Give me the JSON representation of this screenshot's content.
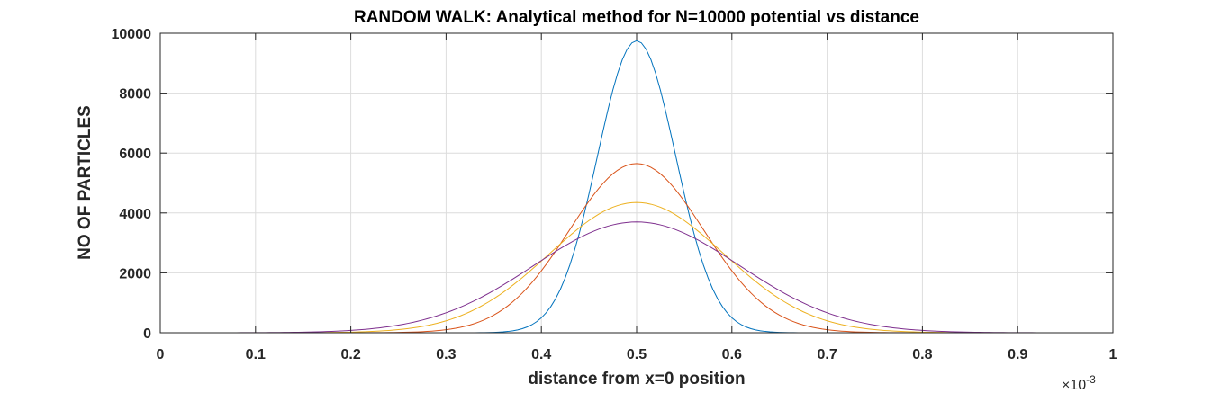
{
  "chart_data": {
    "type": "line",
    "title": "RANDOM WALK: Analytical method for N=10000 potential vs distance",
    "xlabel": "distance from x=0 position",
    "ylabel": "NO OF PARTICLES",
    "x_exponent_label": "×10",
    "x_exponent": "-3",
    "xlim": [
      0,
      1
    ],
    "ylim": [
      0,
      10000
    ],
    "x_ticks": [
      "0",
      "0.1",
      "0.2",
      "0.3",
      "0.4",
      "0.5",
      "0.6",
      "0.7",
      "0.8",
      "0.9",
      "1"
    ],
    "y_ticks": [
      "0",
      "2000",
      "4000",
      "6000",
      "8000",
      "10000"
    ],
    "grid": true,
    "x_unit_scale": "1e-3",
    "series": [
      {
        "color": "#0072BD",
        "peak_x": 0.5,
        "peak_y": 9750,
        "sigma": 0.041,
        "x": [
          0.3,
          0.35,
          0.4,
          0.45,
          0.5,
          0.55,
          0.6,
          0.65,
          0.7
        ],
        "y": [
          7,
          125,
          1000,
          4720,
          9750,
          4720,
          1000,
          125,
          7
        ]
      },
      {
        "color": "#D95319",
        "peak_x": 0.5,
        "peak_y": 5650,
        "sigma": 0.0705,
        "x": [
          0.2,
          0.3,
          0.4,
          0.45,
          0.5,
          0.55,
          0.6,
          0.7,
          0.8
        ],
        "y": [
          7,
          100,
          2050,
          4450,
          5650,
          4450,
          2050,
          100,
          7
        ]
      },
      {
        "color": "#EDB120",
        "peak_x": 0.5,
        "peak_y": 4350,
        "sigma": 0.0915,
        "x": [
          0.1,
          0.2,
          0.3,
          0.4,
          0.5,
          0.6,
          0.7,
          0.8,
          0.9
        ],
        "y": [
          3,
          200,
          400,
          2400,
          4350,
          2400,
          400,
          200,
          3
        ]
      },
      {
        "color": "#7E2F8E",
        "peak_x": 0.5,
        "peak_y": 3700,
        "sigma": 0.108,
        "x": [
          0.1,
          0.2,
          0.3,
          0.4,
          0.5,
          0.6,
          0.7,
          0.8,
          0.9
        ],
        "y": [
          40,
          200,
          675,
          2410,
          3700,
          2410,
          675,
          200,
          40
        ]
      }
    ]
  }
}
